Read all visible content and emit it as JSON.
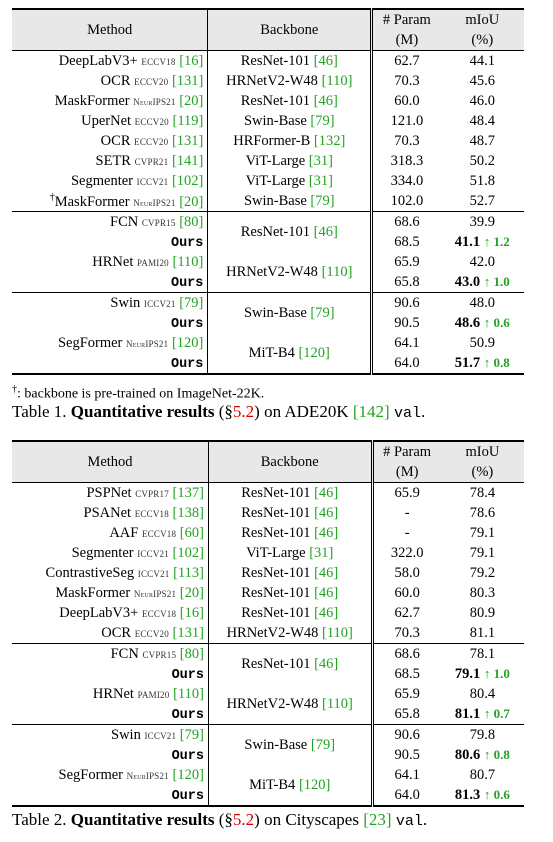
{
  "table1": {
    "headers": {
      "method": "Method",
      "backbone": "Backbone",
      "param_line1": "# Param",
      "param_line2": "(M)",
      "miou_line1": "mIoU",
      "miou_line2": "(%)"
    },
    "rows": [
      {
        "method": "DeepLabV3+",
        "venue": "ECCV18",
        "ref": "[16]",
        "backbone": "ResNet-101",
        "bref": "[46]",
        "param": "62.7",
        "miou": "44.1"
      },
      {
        "method": "OCR",
        "venue": "ECCV20",
        "ref": "[131]",
        "backbone": "HRNetV2-W48",
        "bref": "[110]",
        "param": "70.3",
        "miou": "45.6"
      },
      {
        "method": "MaskFormer",
        "venue": "NeurIPS21",
        "ref": "[20]",
        "backbone": "ResNet-101",
        "bref": "[46]",
        "param": "60.0",
        "miou": "46.0"
      },
      {
        "method": "UperNet",
        "venue": "ECCV20",
        "ref": "[119]",
        "backbone": "Swin-Base",
        "bref": "[79]",
        "param": "121.0",
        "miou": "48.4"
      },
      {
        "method": "OCR",
        "venue": "ECCV20",
        "ref": "[131]",
        "backbone": "HRFormer-B",
        "bref": "[132]",
        "param": "70.3",
        "miou": "48.7"
      },
      {
        "method": "SETR",
        "venue": "CVPR21",
        "ref": "[141]",
        "backbone": "ViT-Large",
        "bref": "[31]",
        "param": "318.3",
        "miou": "50.2"
      },
      {
        "method": "Segmenter",
        "venue": "ICCV21",
        "ref": "[102]",
        "backbone": "ViT-Large",
        "bref": "[31]",
        "param": "334.0",
        "miou": "51.8"
      },
      {
        "method": "MaskFormer",
        "dagger": "†",
        "venue": "NeurIPS21",
        "ref": "[20]",
        "backbone": "Swin-Base",
        "bref": "[79]",
        "param": "102.0",
        "miou": "52.7"
      }
    ],
    "groups": [
      {
        "method": "FCN",
        "venue": "CVPR15",
        "ref": "[80]",
        "backbone": "ResNet-101",
        "bref": "[46]",
        "base_param": "68.6",
        "base_miou": "39.9",
        "ours": "Ours",
        "ours_param": "68.5",
        "ours_miou": "41.1",
        "gain": "↑ 1.2"
      },
      {
        "method": "HRNet",
        "venue": "PAMI20",
        "ref": "[110]",
        "backbone": "HRNetV2-W48",
        "bref": "[110]",
        "base_param": "65.9",
        "base_miou": "42.0",
        "ours": "Ours",
        "ours_param": "65.8",
        "ours_miou": "43.0",
        "gain": "↑ 1.0"
      },
      {
        "method": "Swin",
        "venue": "ICCV21",
        "ref": "[79]",
        "backbone": "Swin-Base",
        "bref": "[79]",
        "base_param": "90.6",
        "base_miou": "48.0",
        "ours": "Ours",
        "ours_param": "90.5",
        "ours_miou": "48.6",
        "gain": "↑ 0.6"
      },
      {
        "method": "SegFormer",
        "venue": "NeurIPS21",
        "ref": "[120]",
        "backbone": "MiT-B4",
        "bref": "[120]",
        "base_param": "64.1",
        "base_miou": "50.9",
        "ours": "Ours",
        "ours_param": "64.0",
        "ours_miou": "51.7",
        "gain": "↑ 0.8"
      }
    ],
    "footnote_mark": "†",
    "footnote": ": backbone is pre-trained on ImageNet-22K.",
    "caption_prefix": "Table 1. ",
    "caption_bold": "Quantitative results",
    "caption_open": " (§",
    "caption_sec": "5.2",
    "caption_mid": ") on ADE20K ",
    "caption_ref": "[142]",
    "caption_mono": "val",
    "caption_end": "."
  },
  "table2": {
    "headers": {
      "method": "Method",
      "backbone": "Backbone",
      "param_line1": "# Param",
      "param_line2": "(M)",
      "miou_line1": "mIoU",
      "miou_line2": "(%)"
    },
    "rows": [
      {
        "method": "PSPNet",
        "venue": "CVPR17",
        "ref": "[137]",
        "backbone": "ResNet-101",
        "bref": "[46]",
        "param": "65.9",
        "miou": "78.4"
      },
      {
        "method": "PSANet",
        "venue": "ECCV18",
        "ref": "[138]",
        "backbone": "ResNet-101",
        "bref": "[46]",
        "param": "-",
        "miou": "78.6"
      },
      {
        "method": "AAF",
        "venue": "ECCV18",
        "ref": "[60]",
        "backbone": "ResNet-101",
        "bref": "[46]",
        "param": "-",
        "miou": "79.1"
      },
      {
        "method": "Segmenter",
        "venue": "ICCV21",
        "ref": "[102]",
        "backbone": "ViT-Large",
        "bref": "[31]",
        "param": "322.0",
        "miou": "79.1"
      },
      {
        "method": "ContrastiveSeg",
        "venue": "ICCV21",
        "ref": "[113]",
        "backbone": "ResNet-101",
        "bref": "[46]",
        "param": "58.0",
        "miou": "79.2"
      },
      {
        "method": "MaskFormer",
        "venue": "NeurIPS21",
        "ref": "[20]",
        "backbone": "ResNet-101",
        "bref": "[46]",
        "param": "60.0",
        "miou": "80.3"
      },
      {
        "method": "DeepLabV3+",
        "venue": "ECCV18",
        "ref": "[16]",
        "backbone": "ResNet-101",
        "bref": "[46]",
        "param": "62.7",
        "miou": "80.9"
      },
      {
        "method": "OCR",
        "venue": "ECCV20",
        "ref": "[131]",
        "backbone": "HRNetV2-W48",
        "bref": "[110]",
        "param": "70.3",
        "miou": "81.1"
      }
    ],
    "groups": [
      {
        "method": "FCN",
        "venue": "CVPR15",
        "ref": "[80]",
        "backbone": "ResNet-101",
        "bref": "[46]",
        "base_param": "68.6",
        "base_miou": "78.1",
        "ours": "Ours",
        "ours_param": "68.5",
        "ours_miou": "79.1",
        "gain": "↑ 1.0"
      },
      {
        "method": "HRNet",
        "venue": "PAMI20",
        "ref": "[110]",
        "backbone": "HRNetV2-W48",
        "bref": "[110]",
        "base_param": "65.9",
        "base_miou": "80.4",
        "ours": "Ours",
        "ours_param": "65.8",
        "ours_miou": "81.1",
        "gain": "↑ 0.7"
      },
      {
        "method": "Swin",
        "venue": "ICCV21",
        "ref": "[79]",
        "backbone": "Swin-Base",
        "bref": "[79]",
        "base_param": "90.6",
        "base_miou": "79.8",
        "ours": "Ours",
        "ours_param": "90.5",
        "ours_miou": "80.6",
        "gain": "↑ 0.8"
      },
      {
        "method": "SegFormer",
        "venue": "NeurIPS21",
        "ref": "[120]",
        "backbone": "MiT-B4",
        "bref": "[120]",
        "base_param": "64.1",
        "base_miou": "80.7",
        "ours": "Ours",
        "ours_param": "64.0",
        "ours_miou": "81.3",
        "gain": "↑ 0.6"
      }
    ],
    "caption_prefix": "Table 2. ",
    "caption_bold": "Quantitative results",
    "caption_open": " (§",
    "caption_sec": "5.2",
    "caption_mid": ") on Cityscapes ",
    "caption_ref": "[23]",
    "caption_mono": "val",
    "caption_end": "."
  },
  "colors": {
    "reference": "#22a322",
    "section_ref": "#d40000",
    "header_bg": "#e8e8e8"
  }
}
